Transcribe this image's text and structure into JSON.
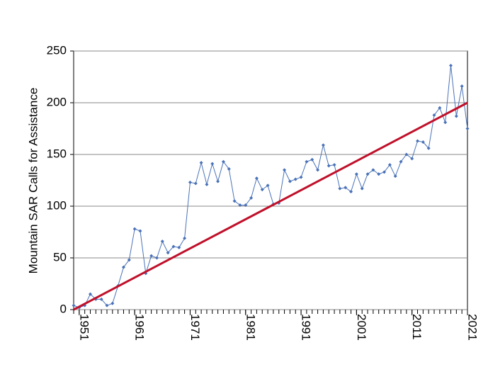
{
  "chart_data": {
    "type": "line",
    "y_label": "Mountain SAR Calls for Assistance",
    "x": [
      1950,
      1951,
      1952,
      1953,
      1954,
      1955,
      1956,
      1957,
      1958,
      1959,
      1960,
      1961,
      1962,
      1963,
      1964,
      1965,
      1966,
      1967,
      1968,
      1969,
      1970,
      1971,
      1972,
      1973,
      1974,
      1975,
      1976,
      1977,
      1978,
      1979,
      1980,
      1981,
      1982,
      1983,
      1984,
      1985,
      1986,
      1987,
      1988,
      1989,
      1990,
      1991,
      1992,
      1993,
      1994,
      1995,
      1996,
      1997,
      1998,
      1999,
      2000,
      2001,
      2002,
      2003,
      2004,
      2005,
      2006,
      2007,
      2008,
      2009,
      2010,
      2011,
      2012,
      2013,
      2014,
      2015,
      2016,
      2017,
      2018,
      2019,
      2020,
      2021
    ],
    "series": [
      {
        "color": "#4a72b8",
        "values": [
          4,
          2,
          4,
          15,
          10,
          10,
          4,
          6,
          23,
          41,
          48,
          78,
          76,
          35,
          52,
          50,
          66,
          55,
          61,
          60,
          69,
          123,
          122,
          142,
          121,
          141,
          124,
          143,
          136,
          105,
          101,
          101,
          108,
          127,
          116,
          120,
          102,
          103,
          135,
          124,
          126,
          128,
          143,
          145,
          135,
          159,
          139,
          140,
          117,
          118,
          114,
          131,
          117,
          131,
          135,
          131,
          133,
          140,
          129,
          143,
          150,
          146,
          163,
          162,
          156,
          188,
          195,
          181,
          236,
          187,
          216,
          175
        ]
      },
      {
        "color": "#c0102a",
        "x": [
          1950,
          2021
        ],
        "values": [
          0,
          200
        ]
      }
    ],
    "xlim": [
      1950,
      2021
    ],
    "xticks": [
      1951,
      1961,
      1971,
      1981,
      1991,
      2001,
      2011,
      2021
    ],
    "ylim": [
      0,
      250
    ],
    "yticks": [
      0,
      50,
      100,
      150,
      200,
      250
    ],
    "grid": true
  }
}
